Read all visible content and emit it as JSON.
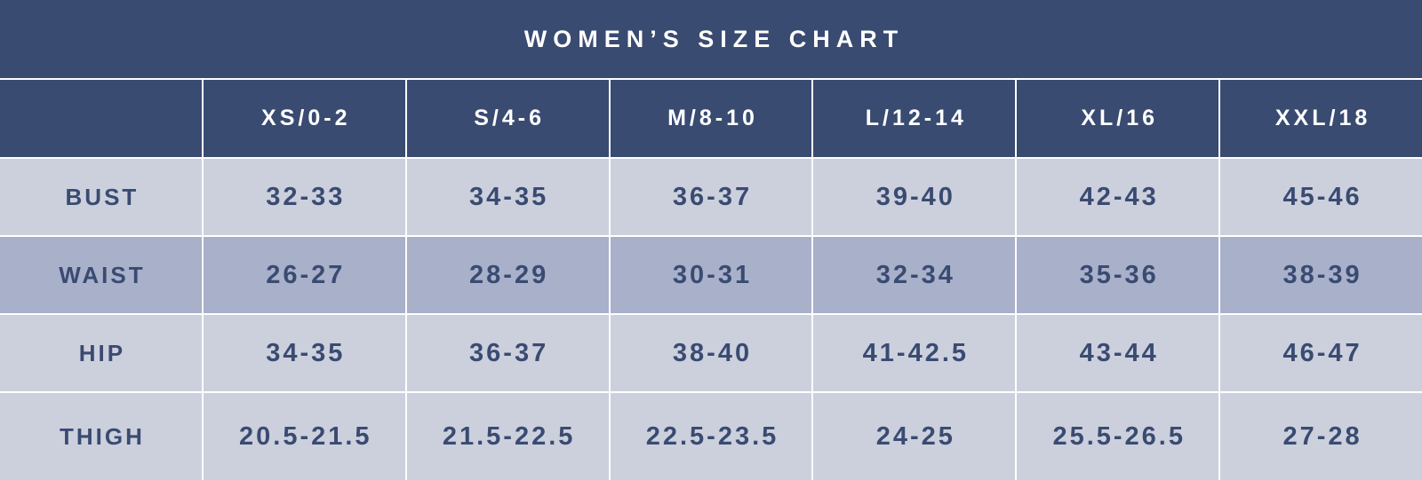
{
  "colors": {
    "navy": "#3a4b72",
    "navyText": "#3a4b72",
    "rowLight": "#ccd0dd",
    "rowDark": "#a9b0ca",
    "line": "#ffffff",
    "white": "#ffffff"
  },
  "chart_data": {
    "type": "table",
    "title": "WOMEN’S SIZE CHART",
    "column_headers": [
      "XS/0-2",
      "S/4-6",
      "M/8-10",
      "L/12-14",
      "XL/16",
      "XXL/18"
    ],
    "rows": [
      {
        "label": "BUST",
        "values": [
          "32-33",
          "34-35",
          "36-37",
          "39-40",
          "42-43",
          "45-46"
        ]
      },
      {
        "label": "WAIST",
        "values": [
          "26-27",
          "28-29",
          "30-31",
          "32-34",
          "35-36",
          "38-39"
        ]
      },
      {
        "label": "HIP",
        "values": [
          "34-35",
          "36-37",
          "38-40",
          "41-42.5",
          "43-44",
          "46-47"
        ]
      },
      {
        "label": "THIGH",
        "values": [
          "20.5-21.5",
          "21.5-22.5",
          "22.5-23.5",
          "24-25",
          "25.5-26.5",
          "27-28"
        ]
      }
    ]
  }
}
